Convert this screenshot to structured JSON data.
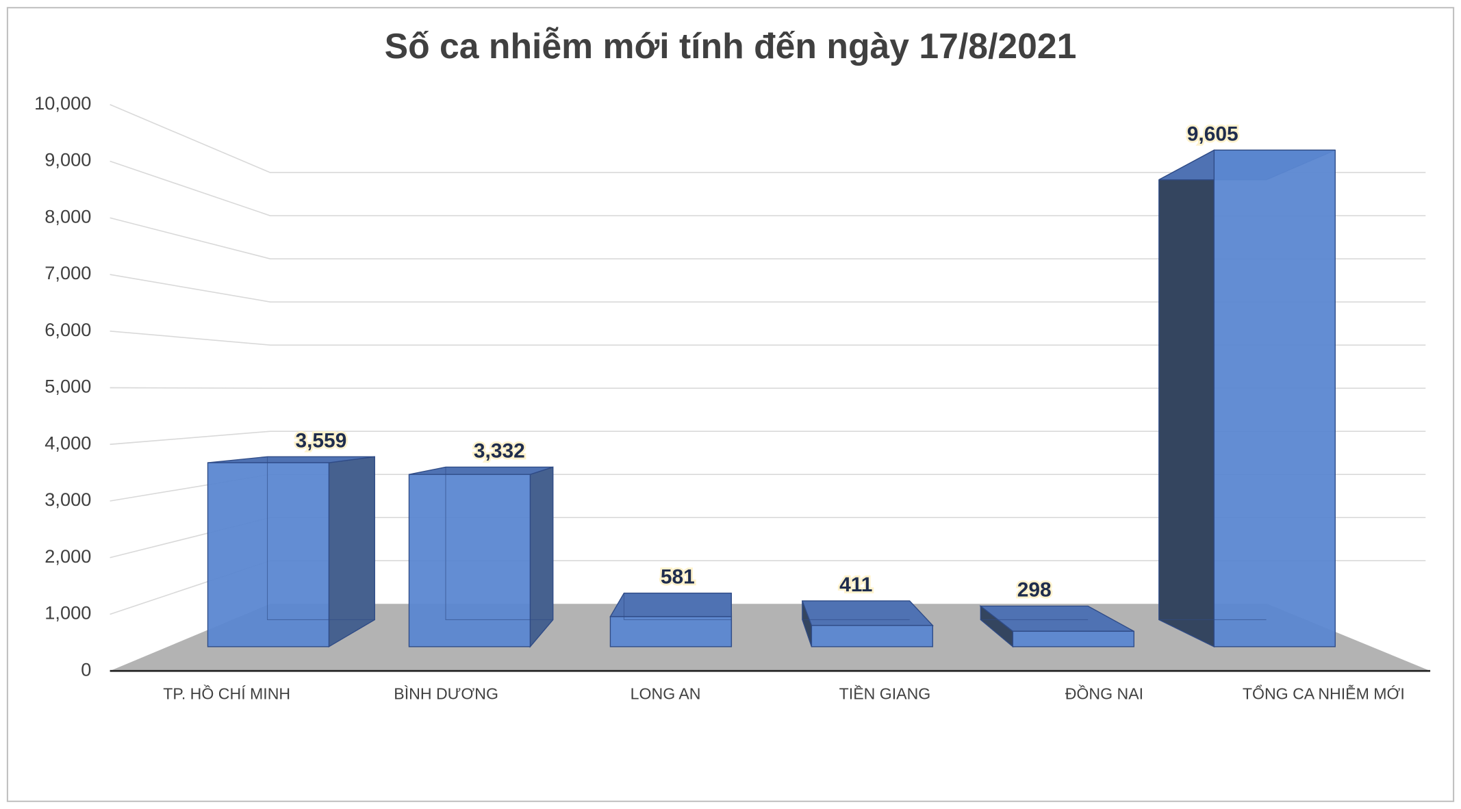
{
  "chart_data": {
    "type": "bar3d",
    "title": "Số ca nhiễm mới tính đến ngày 17/8/2021",
    "categories": [
      "TP. HỒ CHÍ MINH",
      "BÌNH DƯƠNG",
      "LONG AN",
      "TIỀN GIANG",
      "ĐỒNG NAI",
      "TỔNG CA NHIỄM MỚI"
    ],
    "values": [
      3559,
      3332,
      581,
      411,
      298,
      9605
    ],
    "value_labels": [
      "3,559",
      "3,332",
      "581",
      "411",
      "298",
      "9,605"
    ],
    "color": "#5b87d1",
    "ylim": [
      0,
      10000
    ],
    "yticks": [
      0,
      {
        "value": 1000,
        "label": "1,000"
      },
      {
        "value": 2000,
        "label": "2,000"
      },
      {
        "value": 3000,
        "label": "3,000"
      },
      {
        "value": 4000,
        "label": "4,000"
      },
      {
        "value": 5000,
        "label": "5,000"
      },
      {
        "value": 6000,
        "label": "6,000"
      },
      {
        "value": 7000,
        "label": "7,000"
      },
      {
        "value": 8000,
        "label": "8,000"
      },
      {
        "value": 9000,
        "label": "9,000"
      },
      {
        "value": 10000,
        "label": "10,000"
      }
    ],
    "grid": true
  }
}
